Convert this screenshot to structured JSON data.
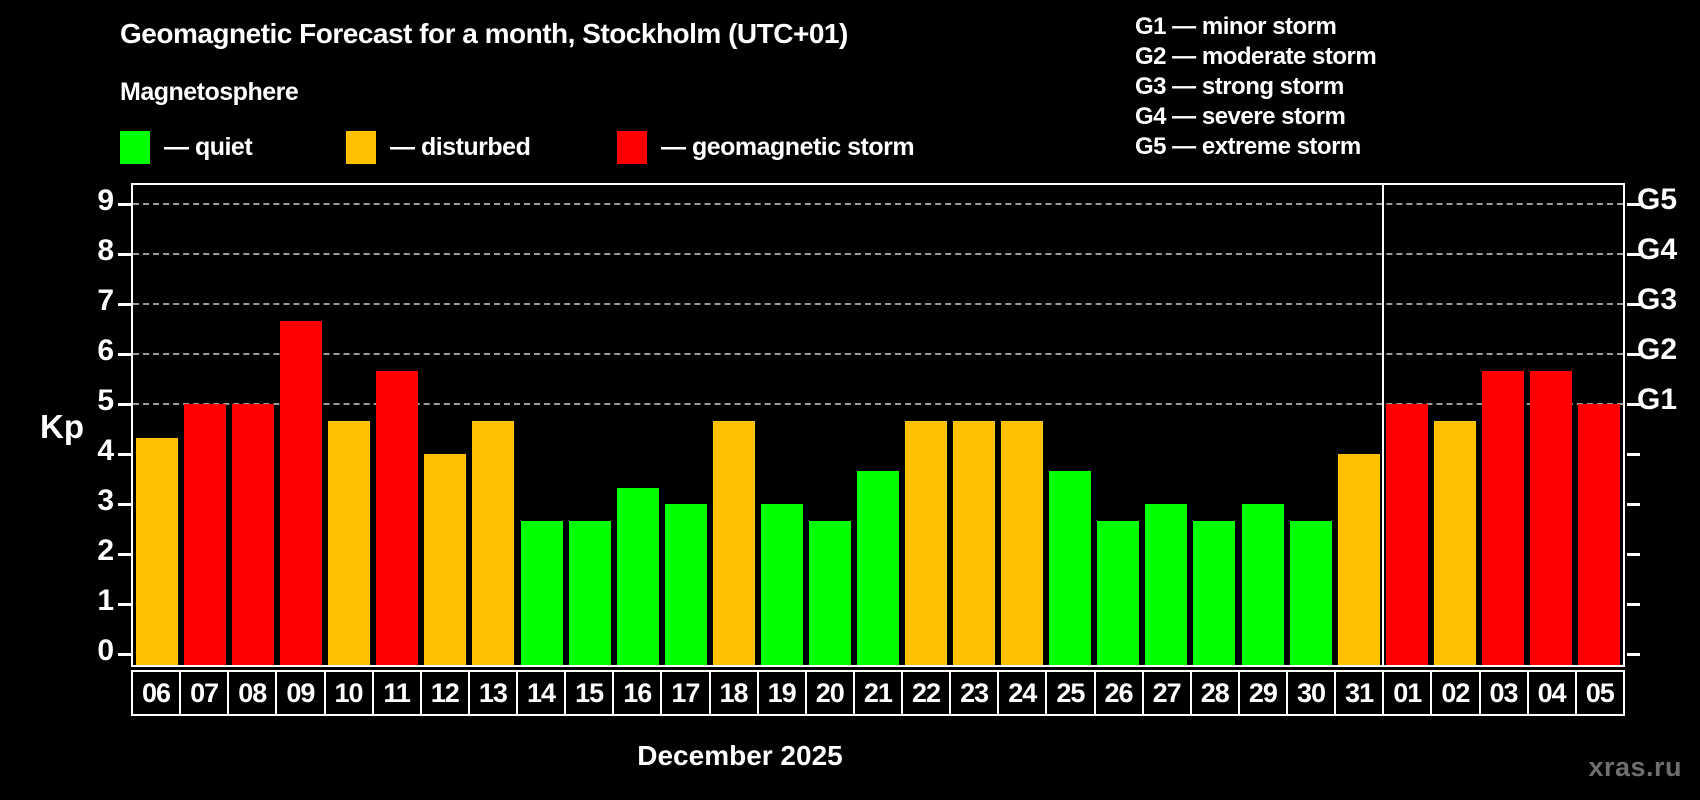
{
  "header": {
    "title": "Geomagnetic Forecast for a month, Stockholm (UTC+01)",
    "subtitle": "Magnetosphere"
  },
  "colors": {
    "quiet": "#00ff00",
    "disturbed": "#ffc000",
    "storm": "#ff0000",
    "grid": "#9a9a9a",
    "axis": "#ffffff",
    "text": "#ffffff",
    "background": "#000000",
    "watermark": "#6f6f6f"
  },
  "legend": {
    "items": [
      {
        "key": "quiet",
        "label": "— quiet",
        "color": "#00ff00"
      },
      {
        "key": "disturbed",
        "label": "— disturbed",
        "color": "#ffc000"
      },
      {
        "key": "storm",
        "label": "— geomagnetic storm",
        "color": "#ff0000"
      }
    ]
  },
  "g_scale_legend": {
    "lines": [
      "G1 — minor storm",
      "G2 — moderate storm",
      "G3 — strong storm",
      "G4 — severe storm",
      "G5 — extreme storm"
    ]
  },
  "chart_data": {
    "type": "bar",
    "title": "Geomagnetic Forecast for a month, Stockholm (UTC+01)",
    "subtitle": "Magnetosphere",
    "xlabel": "December 2025",
    "ylabel": "Kp",
    "ylim": [
      0,
      9
    ],
    "y_ticks": [
      0,
      1,
      2,
      3,
      4,
      5,
      6,
      7,
      8,
      9
    ],
    "gridlines_at": [
      5,
      6,
      7,
      8,
      9
    ],
    "grid": "dashed horizontal at Kp 5-9 only",
    "legend_position": "top-left",
    "right_axis_labels": [
      {
        "label": "G1",
        "kp": 5
      },
      {
        "label": "G2",
        "kp": 6
      },
      {
        "label": "G3",
        "kp": 7
      },
      {
        "label": "G4",
        "kp": 8
      },
      {
        "label": "G5",
        "kp": 9
      }
    ],
    "categories": [
      "06",
      "07",
      "08",
      "09",
      "10",
      "11",
      "12",
      "13",
      "14",
      "15",
      "16",
      "17",
      "18",
      "19",
      "20",
      "21",
      "22",
      "23",
      "24",
      "25",
      "26",
      "27",
      "28",
      "29",
      "30",
      "31",
      "01",
      "02",
      "03",
      "04",
      "05"
    ],
    "divider_after_index": 26,
    "series": [
      {
        "name": "Kp forecast",
        "values": [
          4.33,
          5.0,
          5.0,
          6.67,
          4.67,
          5.67,
          4.0,
          4.67,
          2.67,
          2.67,
          3.33,
          3.0,
          4.67,
          3.0,
          2.67,
          3.67,
          4.67,
          4.67,
          4.67,
          3.67,
          2.67,
          3.0,
          2.67,
          3.0,
          2.67,
          4.0,
          5.0,
          4.67,
          5.67,
          5.67,
          5.0
        ],
        "status": [
          "disturbed",
          "storm",
          "storm",
          "storm",
          "disturbed",
          "storm",
          "disturbed",
          "disturbed",
          "quiet",
          "quiet",
          "quiet",
          "quiet",
          "disturbed",
          "quiet",
          "quiet",
          "quiet",
          "disturbed",
          "disturbed",
          "disturbed",
          "quiet",
          "quiet",
          "quiet",
          "quiet",
          "quiet",
          "quiet",
          "disturbed",
          "storm",
          "disturbed",
          "storm",
          "storm",
          "storm"
        ]
      }
    ]
  },
  "footer": {
    "x_axis_title": "December 2025",
    "watermark": "xras.ru"
  }
}
